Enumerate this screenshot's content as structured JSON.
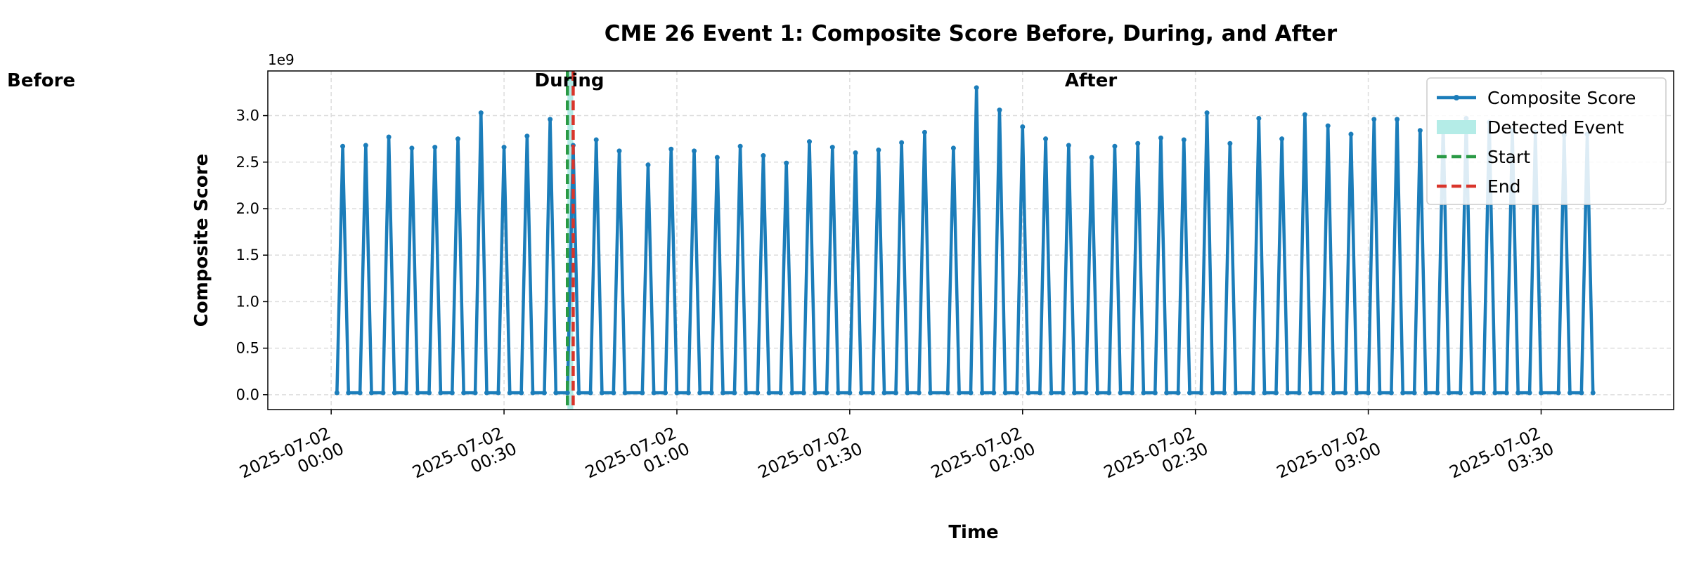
{
  "chart_data": {
    "type": "line",
    "title": "CME 26 Event 1: Composite Score Before, During, and After",
    "xlabel": "Time",
    "ylabel": "Composite Score",
    "y_offset_label": "1e9",
    "x": [
      "2025-07-02 00:01",
      "2025-07-02 00:02",
      "2025-07-02 00:03",
      "2025-07-02 00:05",
      "2025-07-02 00:06",
      "2025-07-02 00:07",
      "2025-07-02 00:09",
      "2025-07-02 00:10",
      "2025-07-02 00:11",
      "2025-07-02 00:13",
      "2025-07-02 00:14",
      "2025-07-02 00:15",
      "2025-07-02 00:17",
      "2025-07-02 00:18",
      "2025-07-02 00:19",
      "2025-07-02 00:21",
      "2025-07-02 00:22",
      "2025-07-02 00:23",
      "2025-07-02 00:25",
      "2025-07-02 00:26",
      "2025-07-02 00:27",
      "2025-07-02 00:29",
      "2025-07-02 00:30",
      "2025-07-02 00:31",
      "2025-07-02 00:33",
      "2025-07-02 00:34",
      "2025-07-02 00:35",
      "2025-07-02 00:37",
      "2025-07-02 00:38",
      "2025-07-02 00:39",
      "2025-07-02 00:41",
      "2025-07-02 00:42",
      "2025-07-02 00:43",
      "2025-07-02 00:45",
      "2025-07-02 00:46",
      "2025-07-02 00:47",
      "2025-07-02 00:49",
      "2025-07-02 00:50",
      "2025-07-02 00:51",
      "2025-07-02 00:54",
      "2025-07-02 00:55",
      "2025-07-02 00:56",
      "2025-07-02 00:58",
      "2025-07-02 00:59",
      "2025-07-02 01:00",
      "2025-07-02 01:02",
      "2025-07-02 01:03",
      "2025-07-02 01:04",
      "2025-07-02 01:06",
      "2025-07-02 01:07",
      "2025-07-02 01:08",
      "2025-07-02 01:10",
      "2025-07-02 01:11",
      "2025-07-02 01:12",
      "2025-07-02 01:14",
      "2025-07-02 01:15",
      "2025-07-02 01:16",
      "2025-07-02 01:18",
      "2025-07-02 01:19",
      "2025-07-02 01:20",
      "2025-07-02 01:22",
      "2025-07-02 01:23",
      "2025-07-02 01:24",
      "2025-07-02 01:26",
      "2025-07-02 01:27",
      "2025-07-02 01:28",
      "2025-07-02 01:30",
      "2025-07-02 01:31",
      "2025-07-02 01:32",
      "2025-07-02 01:34",
      "2025-07-02 01:35",
      "2025-07-02 01:36",
      "2025-07-02 01:38",
      "2025-07-02 01:39",
      "2025-07-02 01:40",
      "2025-07-02 01:42",
      "2025-07-02 01:43",
      "2025-07-02 01:44",
      "2025-07-02 01:47",
      "2025-07-02 01:48",
      "2025-07-02 01:49",
      "2025-07-02 01:51",
      "2025-07-02 01:52",
      "2025-07-02 01:53",
      "2025-07-02 01:55",
      "2025-07-02 01:56",
      "2025-07-02 01:57",
      "2025-07-02 01:59",
      "2025-07-02 02:00",
      "2025-07-02 02:01",
      "2025-07-02 02:03",
      "2025-07-02 02:04",
      "2025-07-02 02:05",
      "2025-07-02 02:07",
      "2025-07-02 02:08",
      "2025-07-02 02:09",
      "2025-07-02 02:11",
      "2025-07-02 02:12",
      "2025-07-02 02:13",
      "2025-07-02 02:15",
      "2025-07-02 02:16",
      "2025-07-02 02:17",
      "2025-07-02 02:19",
      "2025-07-02 02:20",
      "2025-07-02 02:21",
      "2025-07-02 02:23",
      "2025-07-02 02:24",
      "2025-07-02 02:25",
      "2025-07-02 02:27",
      "2025-07-02 02:28",
      "2025-07-02 02:29",
      "2025-07-02 02:31",
      "2025-07-02 02:32",
      "2025-07-02 02:33",
      "2025-07-02 02:35",
      "2025-07-02 02:36",
      "2025-07-02 02:37",
      "2025-07-02 02:40",
      "2025-07-02 02:41",
      "2025-07-02 02:42",
      "2025-07-02 02:44",
      "2025-07-02 02:45",
      "2025-07-02 02:46",
      "2025-07-02 02:48",
      "2025-07-02 02:49",
      "2025-07-02 02:50",
      "2025-07-02 02:52",
      "2025-07-02 02:53",
      "2025-07-02 02:54",
      "2025-07-02 02:56",
      "2025-07-02 02:57",
      "2025-07-02 02:58",
      "2025-07-02 03:00",
      "2025-07-02 03:01",
      "2025-07-02 03:02",
      "2025-07-02 03:04",
      "2025-07-02 03:05",
      "2025-07-02 03:06",
      "2025-07-02 03:08",
      "2025-07-02 03:09",
      "2025-07-02 03:10",
      "2025-07-02 03:12",
      "2025-07-02 03:13",
      "2025-07-02 03:14",
      "2025-07-02 03:16",
      "2025-07-02 03:17",
      "2025-07-02 03:18",
      "2025-07-02 03:20",
      "2025-07-02 03:21",
      "2025-07-02 03:22",
      "2025-07-02 03:24",
      "2025-07-02 03:25",
      "2025-07-02 03:26",
      "2025-07-02 03:28",
      "2025-07-02 03:29",
      "2025-07-02 03:30",
      "2025-07-02 03:33",
      "2025-07-02 03:34",
      "2025-07-02 03:35",
      "2025-07-02 03:37",
      "2025-07-02 03:38",
      "2025-07-02 03:39"
    ],
    "series": [
      {
        "name": "Composite Score",
        "color": "#1b7dba",
        "values": [
          0.02,
          2.67,
          0.02,
          0.02,
          2.68,
          0.02,
          0.02,
          2.77,
          0.02,
          0.02,
          2.65,
          0.02,
          0.02,
          2.66,
          0.02,
          0.02,
          2.75,
          0.02,
          0.02,
          3.03,
          0.02,
          0.02,
          2.66,
          0.02,
          0.02,
          2.78,
          0.02,
          0.02,
          2.96,
          0.02,
          0.02,
          2.68,
          0.02,
          0.02,
          2.74,
          0.02,
          0.02,
          2.62,
          0.02,
          0.02,
          2.47,
          0.02,
          0.02,
          2.64,
          0.02,
          0.02,
          2.62,
          0.02,
          0.02,
          2.55,
          0.02,
          0.02,
          2.67,
          0.02,
          0.02,
          2.57,
          0.02,
          0.02,
          2.49,
          0.02,
          0.02,
          2.72,
          0.02,
          0.02,
          2.66,
          0.02,
          0.02,
          2.6,
          0.02,
          0.02,
          2.63,
          0.02,
          0.02,
          2.71,
          0.02,
          0.02,
          2.82,
          0.02,
          0.02,
          2.65,
          0.02,
          0.02,
          3.3,
          0.02,
          0.02,
          3.06,
          0.02,
          0.02,
          2.88,
          0.02,
          0.02,
          2.75,
          0.02,
          0.02,
          2.68,
          0.02,
          0.02,
          2.55,
          0.02,
          0.02,
          2.67,
          0.02,
          0.02,
          2.7,
          0.02,
          0.02,
          2.76,
          0.02,
          0.02,
          2.74,
          0.02,
          0.02,
          3.03,
          0.02,
          0.02,
          2.7,
          0.02,
          0.02,
          2.97,
          0.02,
          0.02,
          2.75,
          0.02,
          0.02,
          3.01,
          0.02,
          0.02,
          2.89,
          0.02,
          0.02,
          2.8,
          0.02,
          0.02,
          2.96,
          0.02,
          0.02,
          2.96,
          0.02,
          0.02,
          2.84,
          0.02,
          0.02,
          2.91,
          0.02,
          0.02,
          2.97,
          0.02,
          0.02,
          2.93,
          0.02,
          0.02,
          2.84,
          0.02,
          0.02,
          2.82,
          0.02,
          0.02,
          2.79,
          0.02,
          0.02,
          2.8,
          0.02
        ]
      }
    ],
    "event": {
      "name": "Detected Event",
      "color": "#b4ece7"
    },
    "markers": [
      {
        "name": "Start",
        "color": "#2a9a45",
        "x": "2025-07-02 00:41"
      },
      {
        "name": "End",
        "color": "#d9352b",
        "x": "2025-07-02 00:42"
      }
    ],
    "annotations": [
      {
        "text": "Before",
        "color": "#444444"
      },
      {
        "text": "During",
        "color": "#1677b5"
      },
      {
        "text": "After",
        "color": "#444444"
      }
    ],
    "xlim": [
      "2025-07-01 23:49",
      "2025-07-02 03:53"
    ],
    "xticks": [
      "2025-07-02 00:00",
      "2025-07-02 00:30",
      "2025-07-02 01:00",
      "2025-07-02 01:30",
      "2025-07-02 02:00",
      "2025-07-02 02:30",
      "2025-07-02 03:00",
      "2025-07-02 03:30"
    ],
    "ylim": [
      -0.16,
      3.48
    ],
    "yticks": [
      {
        "value": 0,
        "label": "0.0"
      },
      {
        "value": 0.5,
        "label": "0.5"
      },
      {
        "value": 1,
        "label": "1.0"
      },
      {
        "value": 1.5,
        "label": "1.5"
      },
      {
        "value": 2,
        "label": "2.0"
      },
      {
        "value": 2.5,
        "label": "2.5"
      },
      {
        "value": 3,
        "label": "3.0"
      }
    ],
    "grid": true,
    "legend": "upper right"
  }
}
